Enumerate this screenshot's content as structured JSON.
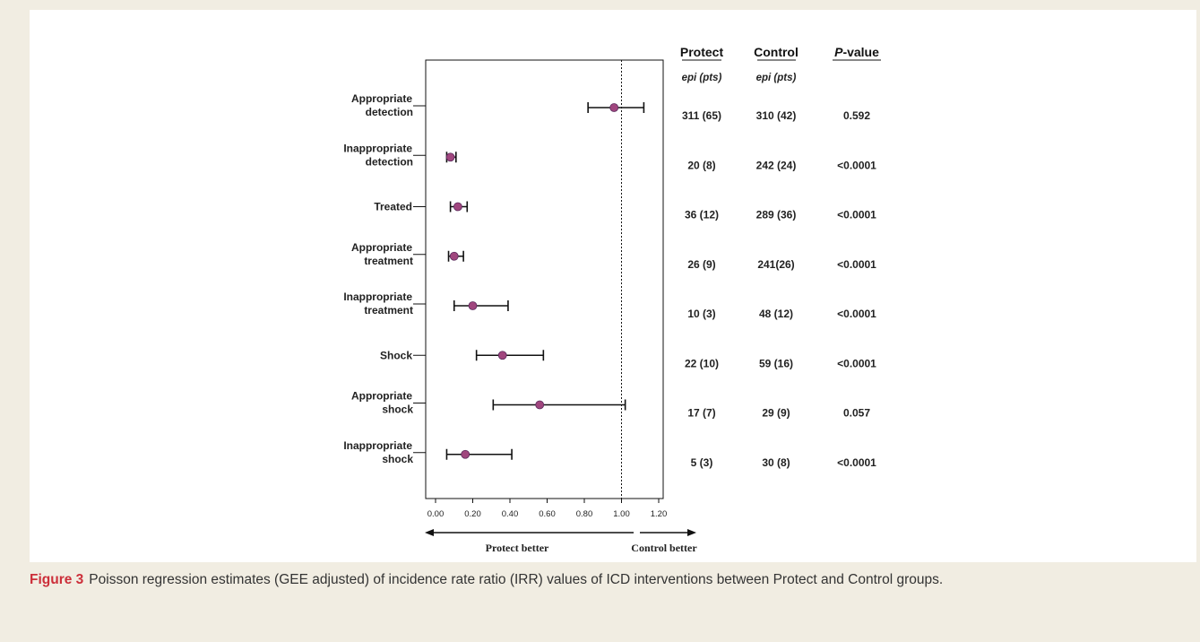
{
  "chart_data": {
    "type": "forest",
    "rows": [
      {
        "label": [
          "Appropriate",
          "detection"
        ],
        "estimate": 0.96,
        "ci": [
          0.82,
          1.12
        ],
        "protect": "311 (65)",
        "control": "310 (42)",
        "p_value": "0.592"
      },
      {
        "label": [
          "Inappropriate",
          "detection"
        ],
        "estimate": 0.08,
        "ci": [
          0.06,
          0.11
        ],
        "protect": "20 (8)",
        "control": "242 (24)",
        "p_value": "<0.0001"
      },
      {
        "label": [
          "Treated"
        ],
        "estimate": 0.12,
        "ci": [
          0.08,
          0.17
        ],
        "protect": "36 (12)",
        "control": "289 (36)",
        "p_value": "<0.0001"
      },
      {
        "label": [
          "Appropriate",
          "treatment"
        ],
        "estimate": 0.1,
        "ci": [
          0.07,
          0.15
        ],
        "protect": "26 (9)",
        "control": "241(26)",
        "p_value": "<0.0001"
      },
      {
        "label": [
          "Inappropriate",
          "treatment"
        ],
        "estimate": 0.2,
        "ci": [
          0.1,
          0.39
        ],
        "protect": "10 (3)",
        "control": "48 (12)",
        "p_value": "<0.0001"
      },
      {
        "label": [
          "Shock"
        ],
        "estimate": 0.36,
        "ci": [
          0.22,
          0.58
        ],
        "protect": "22 (10)",
        "control": "59 (16)",
        "p_value": "<0.0001"
      },
      {
        "label": [
          "Appropriate",
          "shock"
        ],
        "estimate": 0.56,
        "ci": [
          0.31,
          1.02
        ],
        "protect": "17 (7)",
        "control": "29 (9)",
        "p_value": "0.057"
      },
      {
        "label": [
          "Inappropriate",
          "shock"
        ],
        "estimate": 0.16,
        "ci": [
          0.06,
          0.41
        ],
        "protect": "5 (3)",
        "control": "30 (8)",
        "p_value": "<0.0001"
      }
    ],
    "xlim": [
      0,
      1.25
    ],
    "xticks": [
      "0.00",
      "0.20",
      "0.40",
      "0.60",
      "0.80",
      "1.00",
      "1.20"
    ],
    "reference_line": 1.0,
    "direction_left": "Protect better",
    "direction_right": "Control better",
    "columns": {
      "protect": {
        "header": "Protect",
        "sub": "epi (pts)"
      },
      "control": {
        "header": "Control",
        "sub": "epi (pts)"
      },
      "p_value": {
        "header_italic": "P",
        "header_rest": "-value"
      }
    },
    "colors": {
      "point": "#a0467e",
      "line": "#111111",
      "background": "#f1ede2"
    }
  },
  "caption": {
    "label": "Figure 3",
    "text": "Poisson regression estimates (GEE adjusted) of incidence rate ratio (IRR) values of ICD interventions between Protect and Control groups."
  }
}
